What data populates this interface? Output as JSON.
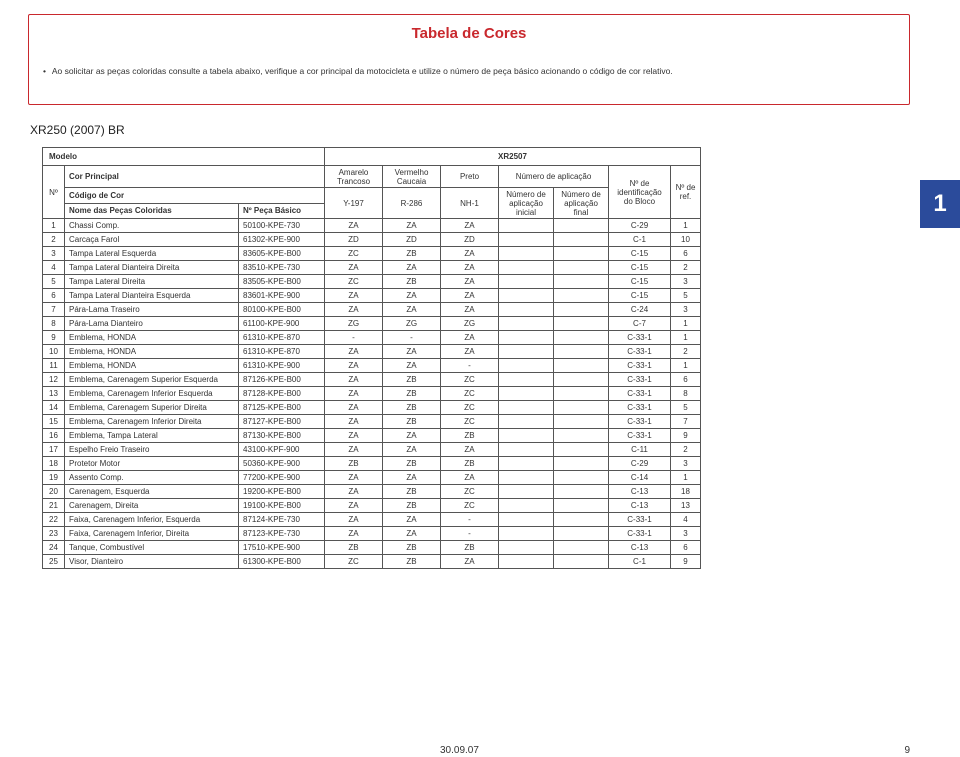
{
  "title": "Tabela de Cores",
  "instruction": "Ao solicitar as peças coloridas consulte a tabela abaixo, verifique a cor principal da motocicleta e utilize o número de peça básico acionando o código de cor relativo.",
  "subtitle": "XR250 (2007) BR",
  "header": {
    "modelo_label": "Modelo",
    "modelo_value": "XR2507",
    "no": "Nº",
    "cor_principal": "Cor Principal",
    "codigo_cor": "Código de Cor",
    "nome_pecas": "Nome das Peças Coloridas",
    "peca_basico": "Nº Peça Básico",
    "c1_top": "Amarelo Trancoso",
    "c2_top": "Vermelho Caucaia",
    "c3_top": "Preto",
    "c1_code": "Y-197",
    "c2_code": "R-286",
    "c3_code": "NH-1",
    "num_aplic": "Número de aplicação",
    "num_aplic_ini": "Número de aplicação inicial",
    "num_aplic_fin": "Número de aplicação final",
    "ident_bloco": "Nº de identificação do Bloco",
    "ref": "Nº de ref."
  },
  "side_tab": "1",
  "footer_date": "30.09.07",
  "footer_page": "9",
  "rows": [
    {
      "n": "1",
      "nome": "Chassi Comp.",
      "peca": "50100-KPE-730",
      "c1": "ZA",
      "c2": "ZA",
      "c3": "ZA",
      "ai": "",
      "af": "",
      "b": "C-29",
      "r": "1"
    },
    {
      "n": "2",
      "nome": "Carcaça Farol",
      "peca": "61302-KPE-900",
      "c1": "ZD",
      "c2": "ZD",
      "c3": "ZD",
      "ai": "",
      "af": "",
      "b": "C-1",
      "r": "10"
    },
    {
      "n": "3",
      "nome": "Tampa Lateral Esquerda",
      "peca": "83605-KPE-B00",
      "c1": "ZC",
      "c2": "ZB",
      "c3": "ZA",
      "ai": "",
      "af": "",
      "b": "C-15",
      "r": "6"
    },
    {
      "n": "4",
      "nome": "Tampa Lateral Dianteira Direita",
      "peca": "83510-KPE-730",
      "c1": "ZA",
      "c2": "ZA",
      "c3": "ZA",
      "ai": "",
      "af": "",
      "b": "C-15",
      "r": "2"
    },
    {
      "n": "5",
      "nome": "Tampa Lateral Direita",
      "peca": "83505-KPE-B00",
      "c1": "ZC",
      "c2": "ZB",
      "c3": "ZA",
      "ai": "",
      "af": "",
      "b": "C-15",
      "r": "3"
    },
    {
      "n": "6",
      "nome": "Tampa Lateral Dianteira Esquerda",
      "peca": "83601-KPE-900",
      "c1": "ZA",
      "c2": "ZA",
      "c3": "ZA",
      "ai": "",
      "af": "",
      "b": "C-15",
      "r": "5"
    },
    {
      "n": "7",
      "nome": "Pára-Lama Traseiro",
      "peca": "80100-KPE-B00",
      "c1": "ZA",
      "c2": "ZA",
      "c3": "ZA",
      "ai": "",
      "af": "",
      "b": "C-24",
      "r": "3"
    },
    {
      "n": "8",
      "nome": "Pára-Lama Dianteiro",
      "peca": "61100-KPE-900",
      "c1": "ZG",
      "c2": "ZG",
      "c3": "ZG",
      "ai": "",
      "af": "",
      "b": "C-7",
      "r": "1"
    },
    {
      "n": "9",
      "nome": "Emblema, HONDA",
      "peca": "61310-KPE-870",
      "c1": "-",
      "c2": "-",
      "c3": "ZA",
      "ai": "",
      "af": "",
      "b": "C-33-1",
      "r": "1"
    },
    {
      "n": "10",
      "nome": "Emblema, HONDA",
      "peca": "61310-KPE-870",
      "c1": "ZA",
      "c2": "ZA",
      "c3": "ZA",
      "ai": "",
      "af": "",
      "b": "C-33-1",
      "r": "2"
    },
    {
      "n": "11",
      "nome": "Emblema, HONDA",
      "peca": "61310-KPE-900",
      "c1": "ZA",
      "c2": "ZA",
      "c3": "-",
      "ai": "",
      "af": "",
      "b": "C-33-1",
      "r": "1"
    },
    {
      "n": "12",
      "nome": "Emblema, Carenagem Superior Esquerda",
      "peca": "87126-KPE-B00",
      "c1": "ZA",
      "c2": "ZB",
      "c3": "ZC",
      "ai": "",
      "af": "",
      "b": "C-33-1",
      "r": "6"
    },
    {
      "n": "13",
      "nome": "Emblema, Carenagem Inferior Esquerda",
      "peca": "87128-KPE-B00",
      "c1": "ZA",
      "c2": "ZB",
      "c3": "ZC",
      "ai": "",
      "af": "",
      "b": "C-33-1",
      "r": "8"
    },
    {
      "n": "14",
      "nome": "Emblema, Carenagem Superior Direita",
      "peca": "87125-KPE-B00",
      "c1": "ZA",
      "c2": "ZB",
      "c3": "ZC",
      "ai": "",
      "af": "",
      "b": "C-33-1",
      "r": "5"
    },
    {
      "n": "15",
      "nome": "Emblema, Carenagem Inferior Direita",
      "peca": "87127-KPE-B00",
      "c1": "ZA",
      "c2": "ZB",
      "c3": "ZC",
      "ai": "",
      "af": "",
      "b": "C-33-1",
      "r": "7"
    },
    {
      "n": "16",
      "nome": "Emblema, Tampa Lateral",
      "peca": "87130-KPE-B00",
      "c1": "ZA",
      "c2": "ZA",
      "c3": "ZB",
      "ai": "",
      "af": "",
      "b": "C-33-1",
      "r": "9"
    },
    {
      "n": "17",
      "nome": "Espelho Freio Traseiro",
      "peca": "43100-KPF-900",
      "c1": "ZA",
      "c2": "ZA",
      "c3": "ZA",
      "ai": "",
      "af": "",
      "b": "C-11",
      "r": "2"
    },
    {
      "n": "18",
      "nome": "Protetor Motor",
      "peca": "50360-KPE-900",
      "c1": "ZB",
      "c2": "ZB",
      "c3": "ZB",
      "ai": "",
      "af": "",
      "b": "C-29",
      "r": "3"
    },
    {
      "n": "19",
      "nome": "Assento Comp.",
      "peca": "77200-KPE-900",
      "c1": "ZA",
      "c2": "ZA",
      "c3": "ZA",
      "ai": "",
      "af": "",
      "b": "C-14",
      "r": "1"
    },
    {
      "n": "20",
      "nome": "Carenagem, Esquerda",
      "peca": "19200-KPE-B00",
      "c1": "ZA",
      "c2": "ZB",
      "c3": "ZC",
      "ai": "",
      "af": "",
      "b": "C-13",
      "r": "18"
    },
    {
      "n": "21",
      "nome": "Carenagem, Direita",
      "peca": "19100-KPE-B00",
      "c1": "ZA",
      "c2": "ZB",
      "c3": "ZC",
      "ai": "",
      "af": "",
      "b": "C-13",
      "r": "13"
    },
    {
      "n": "22",
      "nome": "Faixa, Carenagem Inferior, Esquerda",
      "peca": "87124-KPE-730",
      "c1": "ZA",
      "c2": "ZA",
      "c3": "-",
      "ai": "",
      "af": "",
      "b": "C-33-1",
      "r": "4"
    },
    {
      "n": "23",
      "nome": "Faixa, Carenagem Inferior, Direita",
      "peca": "87123-KPE-730",
      "c1": "ZA",
      "c2": "ZA",
      "c3": "-",
      "ai": "",
      "af": "",
      "b": "C-33-1",
      "r": "3"
    },
    {
      "n": "24",
      "nome": "Tanque, Combustível",
      "peca": "17510-KPE-900",
      "c1": "ZB",
      "c2": "ZB",
      "c3": "ZB",
      "ai": "",
      "af": "",
      "b": "C-13",
      "r": "6"
    },
    {
      "n": "25",
      "nome": "Visor, Dianteiro",
      "peca": "61300-KPE-B00",
      "c1": "ZC",
      "c2": "ZB",
      "c3": "ZA",
      "ai": "",
      "af": "",
      "b": "C-1",
      "r": "9"
    }
  ],
  "style": {
    "accent_red": "#c9282d",
    "tab_blue": "#2b4b9b",
    "text_color": "#333333",
    "border_color": "#555555",
    "background": "#ffffff",
    "body_fontsize": 8,
    "title_fontsize": 15
  }
}
